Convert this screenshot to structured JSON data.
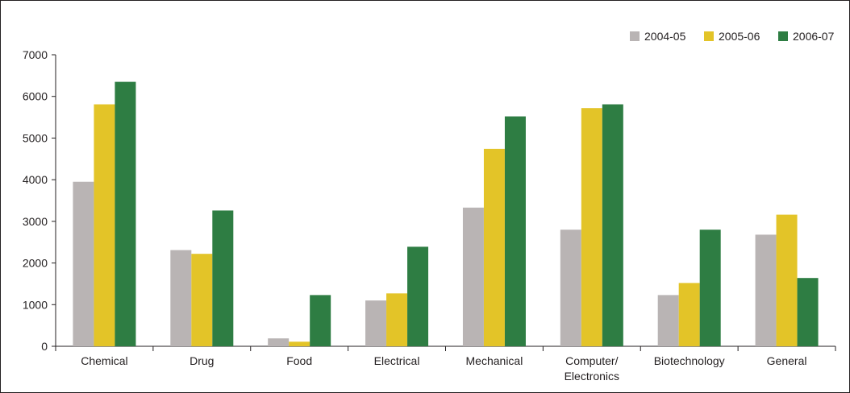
{
  "chart_data": {
    "type": "bar",
    "title": "",
    "xlabel": "",
    "ylabel": "",
    "categories": [
      "Chemical",
      "Drug",
      "Food",
      "Electrical",
      "Mechanical",
      "Computer/ Electronics",
      "Biotechnology",
      "General"
    ],
    "category_lines": [
      [
        "Chemical"
      ],
      [
        "Drug"
      ],
      [
        "Food"
      ],
      [
        "Electrical"
      ],
      [
        "Mechanical"
      ],
      [
        "Computer/",
        "Electronics"
      ],
      [
        "Biotechnology"
      ],
      [
        "General"
      ]
    ],
    "series": [
      {
        "name": "2004-05",
        "color": "#b9b4b4",
        "values": [
          3950,
          2310,
          190,
          1100,
          3330,
          2800,
          1230,
          2680
        ]
      },
      {
        "name": "2005-06",
        "color": "#e3c428",
        "values": [
          5810,
          2220,
          110,
          1270,
          4740,
          5720,
          1520,
          3160
        ]
      },
      {
        "name": "2006-07",
        "color": "#2e7d43",
        "values": [
          6350,
          3260,
          1230,
          2390,
          5520,
          5810,
          2800,
          1640
        ]
      }
    ],
    "ylim": [
      0,
      7000
    ],
    "yticks": [
      0,
      1000,
      2000,
      3000,
      4000,
      5000,
      6000,
      7000
    ],
    "grid": false,
    "legend_position": "top-right"
  }
}
